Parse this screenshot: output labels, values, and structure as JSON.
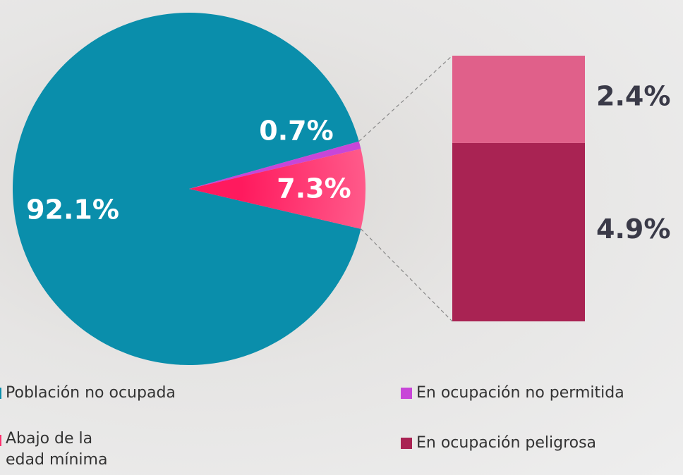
{
  "chart_data": {
    "type": "pie-of-bar",
    "categories": [
      "Población no ocupada",
      "En ocupación no permitida",
      "Abajo de la edad mínima"
    ],
    "values": [
      92.1,
      0.7,
      7.3
    ],
    "value_labels": [
      "92.1%",
      "0.7%",
      "7.3%"
    ],
    "colors": [
      "#0a8eab",
      "#c846d8",
      "#ff2f6d"
    ],
    "bar": {
      "categories": [
        null,
        "En ocupación peligrosa"
      ],
      "values": [
        2.4,
        4.9
      ],
      "value_labels": [
        "2.4%",
        "4.9%"
      ],
      "colors": [
        "#e0608a",
        "#a92353"
      ]
    }
  }
}
